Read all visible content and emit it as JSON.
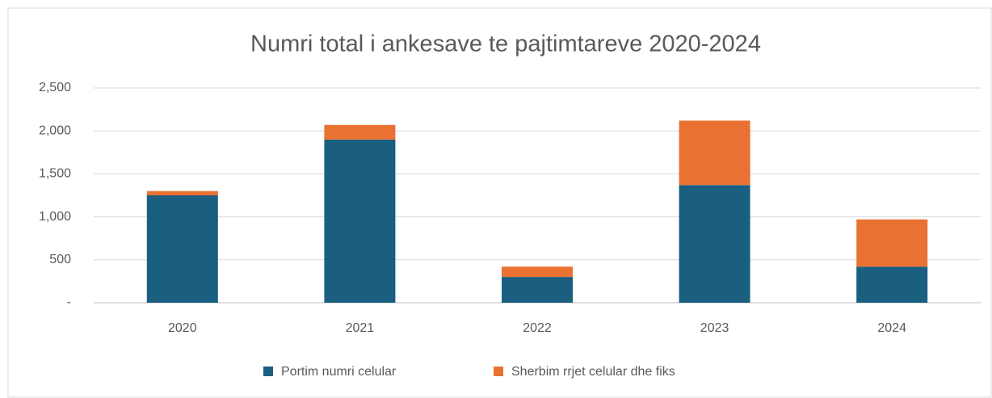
{
  "chart_data": {
    "type": "stacked_bar",
    "title": "Numri total i ankesave te pajtimtareve 2020-2024",
    "categories": [
      "2020",
      "2021",
      "2022",
      "2023",
      "2024"
    ],
    "series": [
      {
        "name": "Portim numri celular",
        "color": "#1a5e80",
        "values": [
          1250,
          1900,
          300,
          1370,
          420
        ]
      },
      {
        "name": "Sherbim rrjet celular dhe fiks",
        "color": "#e97132",
        "values": [
          50,
          170,
          120,
          750,
          550
        ]
      }
    ],
    "ylim": [
      0,
      2500
    ],
    "yticks": [
      {
        "value": 0,
        "label": "-"
      },
      500,
      {
        "value": 1000,
        "label": "1,000"
      },
      {
        "value": 1500,
        "label": "1,500"
      },
      {
        "value": 2000,
        "label": "2,000"
      },
      {
        "value": 2500,
        "label": "2,500"
      }
    ],
    "grid": true
  }
}
